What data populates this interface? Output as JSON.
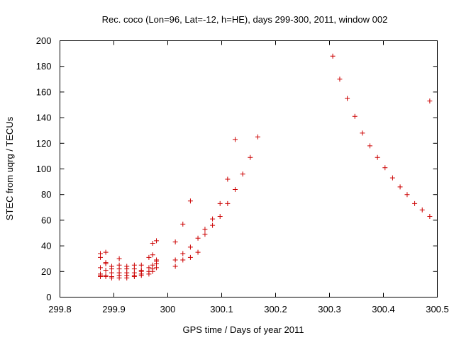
{
  "chart_data": {
    "type": "scatter",
    "title": "Rec. coco (Lon=96, Lat=-12, h=HE), days 299-300, 2011, window 002",
    "xlabel": "GPS time / Days of year 2011",
    "ylabel": "STEC from uqrg / TECUs",
    "xlim": [
      299.8,
      300.5
    ],
    "ylim": [
      0,
      200
    ],
    "xticks": [
      "299.8",
      "299.9",
      "300",
      "300.1",
      "300.2",
      "300.3",
      "300.4",
      "300.5"
    ],
    "xtick_values": [
      299.8,
      299.9,
      300.0,
      300.1,
      300.2,
      300.3,
      300.4,
      300.5
    ],
    "yticks": [
      "0",
      "20",
      "40",
      "60",
      "80",
      "100",
      "120",
      "140",
      "160",
      "180",
      "200"
    ],
    "ytick_values": [
      0,
      20,
      40,
      60,
      80,
      100,
      120,
      140,
      160,
      180,
      200
    ],
    "grid": false,
    "marker_color": "#cc0000",
    "series": [
      {
        "x": [
          299.875,
          299.875,
          299.875,
          299.875,
          299.875,
          299.875,
          299.885,
          299.885,
          299.885,
          299.885,
          299.885,
          299.885,
          299.896,
          299.896,
          299.896,
          299.896,
          299.896,
          299.91,
          299.91,
          299.91,
          299.91,
          299.91,
          299.91,
          299.924,
          299.924,
          299.924,
          299.924,
          299.924,
          299.938,
          299.938,
          299.938,
          299.938,
          299.938,
          299.951,
          299.951,
          299.951,
          299.951,
          299.951,
          299.965,
          299.965,
          299.965,
          299.965,
          299.972,
          299.972,
          299.972,
          299.972,
          299.972,
          299.979,
          299.979,
          299.979,
          299.979,
          299.979,
          300.014,
          300.014,
          300.014,
          300.028,
          300.028,
          300.028,
          300.042,
          300.042,
          300.042,
          300.056,
          300.056,
          300.069,
          300.069,
          300.083,
          300.083,
          300.097,
          300.097,
          300.111,
          300.111,
          300.125,
          300.125,
          300.139,
          300.153,
          300.167,
          300.306,
          300.319,
          300.333,
          300.347,
          300.361,
          300.375,
          300.389,
          300.403,
          300.417,
          300.431,
          300.444,
          300.458,
          300.472,
          300.486,
          300.486
        ],
        "y": [
          34,
          31,
          23,
          18,
          17,
          16,
          35,
          27,
          26,
          21,
          17,
          16,
          24,
          22,
          19,
          16,
          15,
          30,
          25,
          22,
          19,
          17,
          15,
          24,
          22,
          19,
          17,
          15,
          25,
          22,
          19,
          17,
          16,
          25,
          21,
          20,
          18,
          17,
          31,
          23,
          20,
          18,
          42,
          33,
          25,
          22,
          20,
          44,
          29,
          28,
          26,
          23,
          43,
          29,
          24,
          57,
          34,
          29,
          75,
          39,
          31,
          46,
          35,
          53,
          49,
          61,
          56,
          73,
          63,
          92,
          73,
          123,
          84,
          96,
          109,
          125,
          188,
          170,
          155,
          141,
          128,
          118,
          109,
          101,
          93,
          86,
          80,
          73,
          68,
          153,
          63
        ]
      }
    ]
  }
}
